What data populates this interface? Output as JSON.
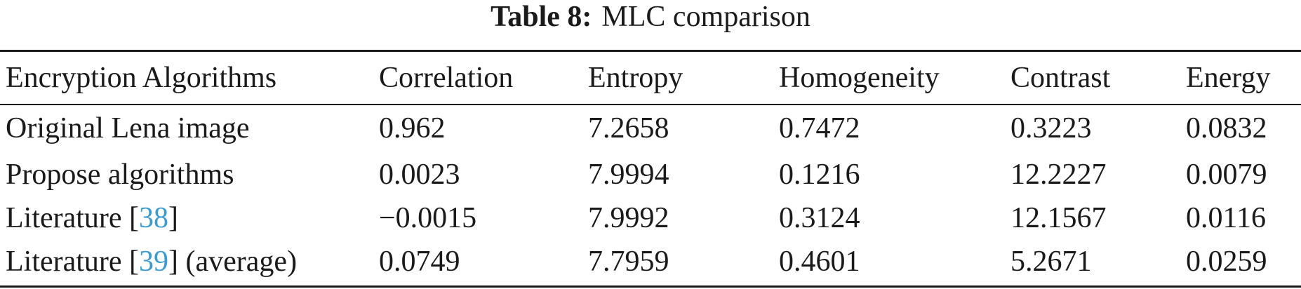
{
  "caption": {
    "label": "Table 8:",
    "title": "MLC comparison"
  },
  "table": {
    "columns": [
      "Encryption Algorithms",
      "Correlation",
      "Entropy",
      "Homogeneity",
      "Contrast",
      "Energy"
    ],
    "rows": [
      {
        "algorithm": {
          "prefix": "Original Lena image",
          "ref": "",
          "suffix": ""
        },
        "correlation": "0.962",
        "entropy": "7.2658",
        "homogeneity": "0.7472",
        "contrast": "0.3223",
        "energy": "0.0832",
        "bold": false
      },
      {
        "algorithm": {
          "prefix": "Propose algorithms",
          "ref": "",
          "suffix": ""
        },
        "correlation": "0.0023",
        "entropy": "7.9994",
        "homogeneity": "0.1216",
        "contrast": "12.2227",
        "energy": "0.0079",
        "bold": true
      },
      {
        "algorithm": {
          "prefix": "Literature [",
          "ref": "38",
          "suffix": "]"
        },
        "correlation": "−0.0015",
        "entropy": "7.9992",
        "homogeneity": "0.3124",
        "contrast": "12.1567",
        "energy": "0.0116",
        "bold": false
      },
      {
        "algorithm": {
          "prefix": "Literature [",
          "ref": "39",
          "suffix": "] (average)"
        },
        "correlation": "0.0749",
        "entropy": "7.7959",
        "homogeneity": "0.4601",
        "contrast": "5.2671",
        "energy": "0.0259",
        "bold": false
      }
    ]
  }
}
